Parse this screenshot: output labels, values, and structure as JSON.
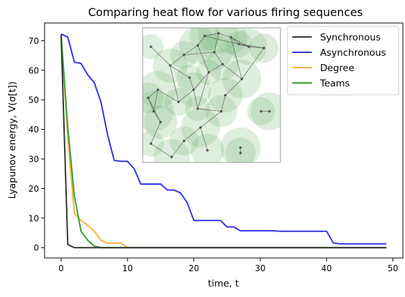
{
  "chart_data": {
    "type": "line",
    "title": "Comparing heat flow for various firing sequences",
    "xlabel": "time, t",
    "ylabel": "Lyapunov energy, V(σ[t])",
    "xlim": [
      -2.5,
      51.5
    ],
    "ylim": [
      -3.5,
      76
    ],
    "xticks": [
      "0",
      "10",
      "20",
      "30",
      "40",
      "50"
    ],
    "yticks": [
      "0",
      "10",
      "20",
      "30",
      "40",
      "50",
      "60",
      "70"
    ],
    "legend_position": "top-right",
    "grid": false,
    "series": [
      {
        "name": "Synchronous",
        "color": "#333333",
        "x": [
          0,
          1,
          2,
          3,
          4,
          5,
          6,
          7,
          8,
          9,
          10,
          20,
          30,
          40,
          49
        ],
        "y": [
          72,
          1,
          0,
          0,
          0,
          0,
          0,
          0,
          0,
          0,
          0,
          0,
          0,
          0,
          0
        ]
      },
      {
        "name": "Asynchronous",
        "color": "#3333e6",
        "x": [
          0,
          1,
          2,
          3,
          4,
          5,
          6,
          7,
          8,
          9,
          10,
          11,
          12,
          13,
          14,
          15,
          16,
          17,
          18,
          19,
          20,
          21,
          22,
          23,
          24,
          25,
          26,
          27,
          28,
          29,
          30,
          31,
          32,
          33,
          34,
          35,
          36,
          37,
          38,
          39,
          40,
          41,
          42,
          43,
          44,
          45,
          46,
          47,
          48,
          49
        ],
        "y": [
          72.3,
          71.2,
          62.8,
          62.3,
          58.5,
          55.8,
          49.2,
          38.2,
          29.5,
          29.2,
          29.2,
          26.7,
          21.5,
          21.5,
          21.5,
          21.5,
          19.5,
          19.5,
          18.5,
          15.2,
          9.2,
          9.2,
          9.2,
          9.2,
          9.2,
          7.0,
          7.0,
          5.7,
          5.7,
          5.7,
          5.7,
          5.7,
          5.7,
          5.5,
          5.5,
          5.5,
          5.5,
          5.5,
          5.5,
          5.5,
          5.5,
          1.6,
          1.3,
          1.3,
          1.3,
          1.3,
          1.3,
          1.3,
          1.3,
          1.3
        ]
      },
      {
        "name": "Degree",
        "color": "#ffad33",
        "x": [
          0,
          1,
          2,
          3,
          4,
          5,
          6,
          7,
          8,
          9,
          10,
          20,
          30,
          40,
          49
        ],
        "y": [
          72,
          37.5,
          11.5,
          9.2,
          7.5,
          5.5,
          2.5,
          1.5,
          1.5,
          1.5,
          0,
          0,
          0,
          0,
          0
        ]
      },
      {
        "name": "Teams",
        "color": "#33a033",
        "x": [
          0,
          1,
          2,
          3,
          4,
          5,
          6,
          7,
          8,
          9,
          10,
          20,
          30,
          40,
          49
        ],
        "y": [
          72,
          40.5,
          17.5,
          5.5,
          2.5,
          0.5,
          0,
          0,
          0,
          0,
          0,
          0,
          0,
          0,
          0
        ]
      }
    ]
  },
  "inset": {
    "description_icon": "network-graph-icon",
    "circle_color": "#6ab36a",
    "edge_color": "#555555",
    "node_color": "#555555"
  }
}
